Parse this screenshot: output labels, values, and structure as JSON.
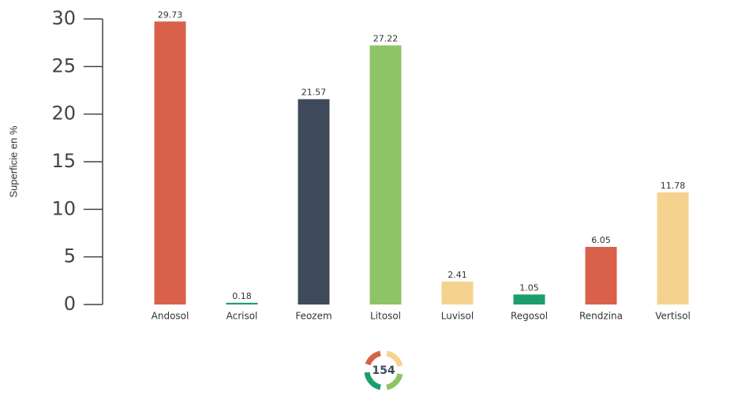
{
  "chart_data": {
    "type": "bar",
    "ylabel": "Superficie en %",
    "categories": [
      "Andosol",
      "Acrisol",
      "Feozem",
      "Litosol",
      "Luvisol",
      "Regosol",
      "Rendzina",
      "Vertisol"
    ],
    "values": [
      29.73,
      0.18,
      21.57,
      27.22,
      2.41,
      1.05,
      6.05,
      11.78
    ],
    "colors": [
      "#d9614a",
      "#1a9e6e",
      "#3f4b5a",
      "#8dc466",
      "#f5d28e",
      "#1a9e6e",
      "#d9614a",
      "#f5d28e"
    ],
    "ylim": [
      0,
      30
    ],
    "yticks": [
      0,
      5,
      10,
      15,
      20,
      25,
      30
    ]
  },
  "page_number": "154"
}
